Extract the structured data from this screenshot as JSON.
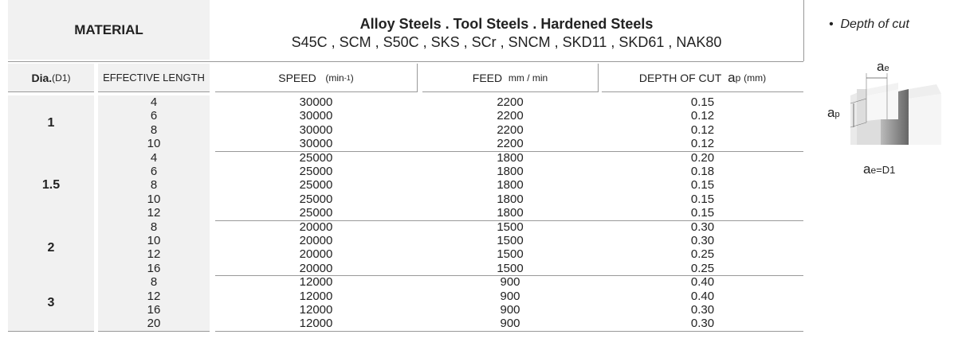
{
  "material_label": "MATERIAL",
  "material_title": "Alloy  Steels . Tool Steels . Hardened Steels",
  "material_grades": "S45C , SCM , S50C , SKS , SCr , SNCM , SKD11 , SKD61 , NAK80",
  "headers": {
    "dia": "Dia.",
    "dia_sub": "(D1)",
    "length": "EFFECTIVE LENGTH",
    "speed": "SPEED",
    "speed_unit": "(min",
    "speed_exp": "-1",
    "speed_close": ")",
    "feed": "FEED",
    "feed_unit": "mm / min",
    "depth": "DEPTH OF CUT",
    "depth_sym": "a",
    "depth_sub": "p",
    "depth_unit": "(mm)"
  },
  "groups": [
    {
      "dia": "1",
      "rows": [
        [
          "4",
          "30000",
          "2200",
          "0.15"
        ],
        [
          "6",
          "30000",
          "2200",
          "0.12"
        ],
        [
          "8",
          "30000",
          "2200",
          "0.12"
        ],
        [
          "10",
          "30000",
          "2200",
          "0.12"
        ]
      ]
    },
    {
      "dia": "1.5",
      "rows": [
        [
          "4",
          "25000",
          "1800",
          "0.20"
        ],
        [
          "6",
          "25000",
          "1800",
          "0.18"
        ],
        [
          "8",
          "25000",
          "1800",
          "0.15"
        ],
        [
          "10",
          "25000",
          "1800",
          "0.15"
        ],
        [
          "12",
          "25000",
          "1800",
          "0.15"
        ]
      ]
    },
    {
      "dia": "2",
      "rows": [
        [
          "8",
          "20000",
          "1500",
          "0.30"
        ],
        [
          "10",
          "20000",
          "1500",
          "0.30"
        ],
        [
          "12",
          "20000",
          "1500",
          "0.25"
        ],
        [
          "16",
          "20000",
          "1500",
          "0.25"
        ]
      ]
    },
    {
      "dia": "3",
      "rows": [
        [
          "8",
          "12000",
          "900",
          "0.40"
        ],
        [
          "12",
          "12000",
          "900",
          "0.40"
        ],
        [
          "16",
          "12000",
          "900",
          "0.30"
        ],
        [
          "20",
          "12000",
          "900",
          "0.30"
        ]
      ]
    }
  ],
  "diagram": {
    "title": "Depth of cut",
    "ae": "a",
    "ae_sub": "e",
    "ap": "a",
    "ap_sub": "p",
    "formula_a": "a",
    "formula_sub": "e",
    "formula_rest": "=D1"
  }
}
